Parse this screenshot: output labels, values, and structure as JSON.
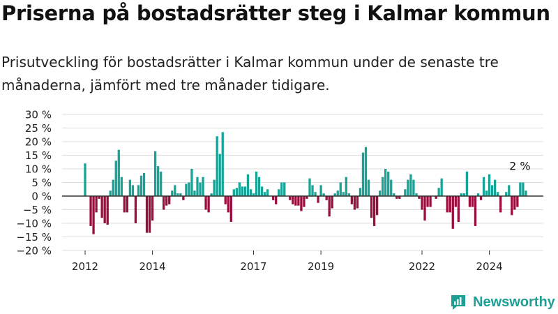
{
  "title": "Priserna på bostadsrätter steg i Kalmar kommun",
  "subtitle": "Prisutveckling för bostadsrätter i Kalmar kommun under de senaste tre månaderna, jämfört med tre månader tidigare.",
  "brand": {
    "name": "Newsworthy",
    "color": "#1f9e93"
  },
  "chart_data": {
    "type": "bar",
    "title": "",
    "xlabel": "",
    "ylabel": "",
    "ylim": [
      -20,
      30
    ],
    "yticks": [
      30,
      25,
      20,
      15,
      10,
      5,
      0,
      -5,
      -10,
      -15,
      -20
    ],
    "ytick_labels": [
      "30 %",
      "25 %",
      "20 %",
      "15 %",
      "10 %",
      "5 %",
      "0 %",
      "−5 %",
      "−10 %",
      "−15 %",
      "−20 %"
    ],
    "xtick_labels": [
      {
        "label": "2012",
        "month": "2012-01"
      },
      {
        "label": "2014",
        "month": "2014-01"
      },
      {
        "label": "2017",
        "month": "2017-01"
      },
      {
        "label": "2019",
        "month": "2019-01"
      },
      {
        "label": "2022",
        "month": "2022-01"
      },
      {
        "label": "2024",
        "month": "2024-01"
      }
    ],
    "grid": true,
    "colors": {
      "positive": "#18a397",
      "negative": "#9b0d3c",
      "zero_line": "#333333",
      "grid": "#dddddd"
    },
    "annotation": {
      "label": "2 %",
      "month": "2024-12"
    },
    "start_month": "2012-01",
    "values": [
      12,
      0,
      -11,
      -14,
      -6,
      -1,
      -8,
      -10,
      -10.5,
      2,
      6,
      13,
      17,
      7,
      -6,
      -6,
      6,
      4,
      -10,
      4,
      7.5,
      8.5,
      -13.5,
      -13.5,
      -9,
      16.5,
      11,
      9,
      -5,
      -3.5,
      -3,
      2,
      4,
      1,
      1,
      -1.5,
      4.5,
      5,
      10,
      2,
      7,
      5,
      7,
      -5,
      -6,
      1,
      6,
      22,
      15.5,
      23.5,
      -3,
      -6,
      -9.5,
      2.5,
      3,
      5,
      3.5,
      3.5,
      8,
      2.5,
      1,
      9,
      7,
      3.5,
      1.5,
      2.5,
      0,
      -1.5,
      -3,
      2.5,
      5,
      5,
      0,
      -1.5,
      -3,
      -3.5,
      -3.5,
      -5.5,
      -4,
      -1,
      6.5,
      4,
      1.5,
      -2.5,
      4,
      1,
      -1.5,
      -7.5,
      -4.5,
      1,
      2,
      5,
      1.5,
      7,
      1,
      -3,
      -5,
      -4.5,
      3,
      16,
      18,
      6,
      -8,
      -11,
      -7,
      2,
      7,
      10,
      9,
      6,
      1,
      -1,
      -1,
      0,
      2.5,
      6,
      8,
      6,
      1,
      -1,
      -5,
      -9,
      -4,
      -4,
      0,
      -1,
      3,
      6.5,
      0,
      -6,
      -6,
      -12,
      -4,
      -9.5,
      1,
      1,
      9,
      -4,
      -4,
      -11,
      1,
      -1.5,
      7,
      2,
      8,
      4,
      6,
      1.5,
      -6,
      0,
      1.5,
      4,
      -7,
      -5,
      -4,
      5,
      5,
      2
    ]
  }
}
